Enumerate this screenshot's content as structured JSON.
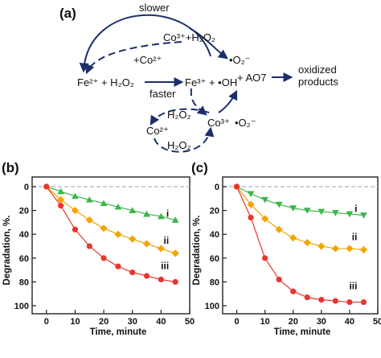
{
  "scheme": {
    "panel_label": "(a)",
    "slower": "slower",
    "faster": "faster",
    "fe2_h2o2": "Fe²⁺ + H₂O₂",
    "fe3_oh": "Fe³⁺ + •OH",
    "co3_h2o2": "Co³⁺+H₂O₂",
    "plus_co2": "+Co²⁺",
    "o2_radical": "•O₂⁻",
    "plus_ao7": "+ AO7",
    "products_line1": "oxidized",
    "products_line2": "products",
    "h2o2_top": "H₂O₂",
    "h2o2_bottom": "H₂O₂",
    "co2_cycle": "Co²⁺",
    "co3_cycle": "Co³⁺",
    "o2_cycle": "•O₂⁻"
  },
  "colors": {
    "arrow": "#1c2f6b",
    "series_i": "#3cb64a",
    "series_ii": "#f2a400",
    "series_iii": "#e8352e",
    "reference_line": "#b5b5b5"
  },
  "chart_data": [
    {
      "panel_label": "(b)",
      "type": "line",
      "xlabel": "Time, minute",
      "ylabel": "Degradation, %.",
      "xlim": [
        -5,
        50
      ],
      "ylim": [
        0,
        100
      ],
      "y_inverted": true,
      "xticks": [
        0,
        10,
        20,
        30,
        40,
        50
      ],
      "yticks": [
        0,
        20,
        40,
        60,
        80,
        100
      ],
      "grid": false,
      "reference_line_y": 0,
      "series": [
        {
          "name": "i",
          "marker": "triangle-up",
          "color": "#3cb64a",
          "x": [
            0,
            5,
            10,
            15,
            20,
            25,
            30,
            35,
            40,
            45
          ],
          "y": [
            0,
            4,
            8,
            11,
            14,
            17,
            20,
            23,
            25,
            28
          ]
        },
        {
          "name": "ii",
          "marker": "diamond",
          "color": "#f2a400",
          "x": [
            0,
            5,
            10,
            15,
            20,
            25,
            30,
            35,
            40,
            45
          ],
          "y": [
            0,
            11,
            20,
            28,
            35,
            40,
            44,
            48,
            52,
            56
          ]
        },
        {
          "name": "iii",
          "marker": "circle",
          "color": "#e8352e",
          "x": [
            0,
            5,
            10,
            15,
            20,
            25,
            30,
            35,
            40,
            45
          ],
          "y": [
            0,
            16,
            36,
            50,
            60,
            67,
            72,
            75,
            78,
            80
          ]
        }
      ]
    },
    {
      "panel_label": "(c)",
      "type": "line",
      "xlabel": "Time, minute",
      "ylabel": "Degradation, %.",
      "xlim": [
        -5,
        50
      ],
      "ylim": [
        0,
        100
      ],
      "y_inverted": true,
      "xticks": [
        0,
        10,
        20,
        30,
        40,
        50
      ],
      "yticks": [
        0,
        20,
        40,
        60,
        80,
        100
      ],
      "grid": false,
      "reference_line_y": 0,
      "series": [
        {
          "name": "i",
          "marker": "triangle-down",
          "color": "#3cb64a",
          "x": [
            0,
            5,
            10,
            15,
            20,
            25,
            30,
            35,
            40,
            45
          ],
          "y": [
            0,
            6,
            11,
            15,
            18,
            20,
            21,
            22,
            23,
            24
          ]
        },
        {
          "name": "ii",
          "marker": "diamond",
          "color": "#f2a400",
          "x": [
            0,
            5,
            10,
            15,
            20,
            25,
            30,
            35,
            40,
            45
          ],
          "y": [
            0,
            15,
            27,
            36,
            43,
            47,
            50,
            52,
            52,
            53
          ]
        },
        {
          "name": "iii",
          "marker": "circle",
          "color": "#e8352e",
          "x": [
            0,
            5,
            10,
            15,
            20,
            25,
            30,
            35,
            40,
            45
          ],
          "y": [
            0,
            26,
            60,
            78,
            88,
            93,
            95,
            96,
            97,
            97
          ]
        }
      ]
    }
  ]
}
